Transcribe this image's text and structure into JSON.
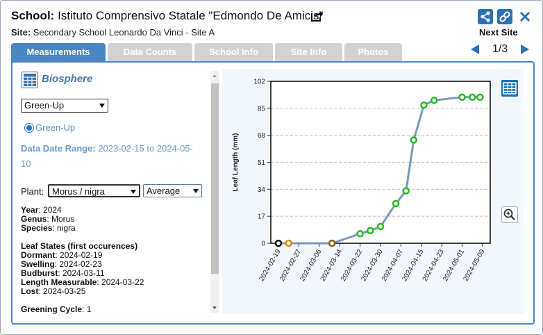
{
  "header": {
    "school_label": "School:",
    "school_name": "Istituto Comprensivo Statale \"Edmondo De Amicis\"",
    "site_label": "Site:",
    "site_name": "Secondary School Leonardo Da Vinci - Site A",
    "next_site": "Next Site",
    "pager": "1/3"
  },
  "tabs": [
    {
      "label": "Measurements",
      "active": true
    },
    {
      "label": "Data Counts",
      "active": false
    },
    {
      "label": "School Info",
      "active": false
    },
    {
      "label": "Site Info",
      "active": false
    },
    {
      "label": "Photos",
      "active": false
    }
  ],
  "left": {
    "title": "Biosphere",
    "protocol_select": "Green-Up",
    "radio_label": "Green-Up",
    "range_label": "Data Date Range:",
    "range_value": "2023-02-15 to 2024-05-10",
    "plant_label": "Plant:",
    "plant_select": "Morus / nigra",
    "stat_select": "Average",
    "year_label": "Year",
    "year": "2024",
    "genus_label": "Genus",
    "genus": "Morus",
    "species_label": "Species",
    "species": "nigra",
    "leaf_states_title": "Leaf States (first occurences)",
    "dormant_label": "Dormant",
    "dormant": "2024-02-19",
    "swelling_label": "Swelling",
    "swelling": "2024-02-23",
    "budburst_label": "Budburst",
    "budburst": "2024-03-11",
    "measurable_label": "Length Measurable",
    "measurable": "2024-03-22",
    "lost_label": "Lost",
    "lost": "2024-03-25",
    "greening_label": "Greening Cycle",
    "greening": "1"
  },
  "colors": {
    "accent": "#2a72b5",
    "tab_active": "#4a86c5",
    "tab_inactive": "#d2d2d2",
    "line": "#7b99bd",
    "dormant": "#111111",
    "swelling": "#e08a10",
    "budburst": "#8a5a20",
    "green": "#1dbf1d"
  },
  "icons": {
    "share_out": "share-out-icon",
    "share": "share-icon",
    "link": "link-icon",
    "close": "close-icon",
    "table": "table-icon",
    "zoom": "zoom-in-icon"
  },
  "chart_data": {
    "type": "line",
    "ylabel": "Leaf Length (mm)",
    "ylim": [
      0,
      102
    ],
    "yticks": [
      "0",
      "17",
      "34",
      "51",
      "68",
      "85",
      "102"
    ],
    "xticks": [
      "2024-02-19",
      "2024-02-27",
      "2024-03-06",
      "2024-03-14",
      "2024-03-22",
      "2024-03-30",
      "2024-04-07",
      "2024-04-15",
      "2024-04-23",
      "2024-05-01",
      "2024-05-09"
    ],
    "grid": true,
    "points": [
      {
        "x": "2024-02-19",
        "y": 0,
        "state": "dormant"
      },
      {
        "x": "2024-02-23",
        "y": 0,
        "state": "swelling"
      },
      {
        "x": "2024-03-11",
        "y": 0,
        "state": "budburst"
      },
      {
        "x": "2024-03-22",
        "y": 6,
        "state": "green"
      },
      {
        "x": "2024-03-26",
        "y": 8,
        "state": "green"
      },
      {
        "x": "2024-03-30",
        "y": 10.5,
        "state": "green"
      },
      {
        "x": "2024-04-05",
        "y": 25,
        "state": "green"
      },
      {
        "x": "2024-04-09",
        "y": 33,
        "state": "green"
      },
      {
        "x": "2024-04-12",
        "y": 65,
        "state": "green"
      },
      {
        "x": "2024-04-16",
        "y": 87,
        "state": "green"
      },
      {
        "x": "2024-04-20",
        "y": 90,
        "state": "green"
      },
      {
        "x": "2024-05-01",
        "y": 92,
        "state": "green"
      },
      {
        "x": "2024-05-05",
        "y": 92,
        "state": "green"
      },
      {
        "x": "2024-05-08",
        "y": 92,
        "state": "green"
      }
    ]
  }
}
